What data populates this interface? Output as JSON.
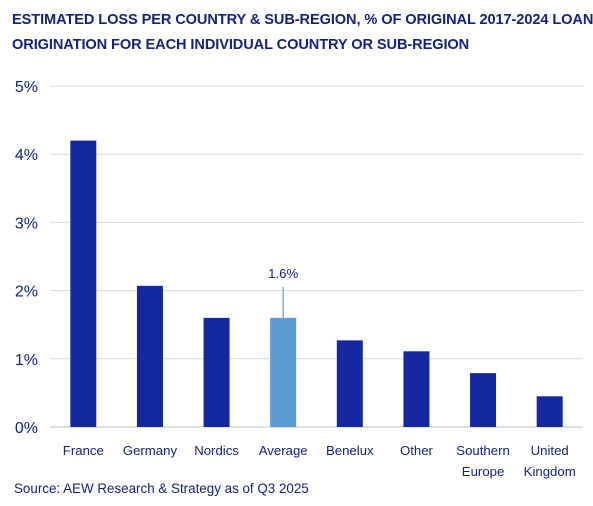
{
  "title_lines": [
    "ESTIMATED LOSS PER COUNTRY & SUB-REGION, % OF ORIGINAL 2017-2024 LOAN",
    "ORIGINATION FOR EACH INDIVIDUAL COUNTRY OR SUB-REGION"
  ],
  "source": "Source: AEW Research & Strategy as of Q3 2025",
  "colors": {
    "bar": "#1428a0",
    "highlight": "#5b9bd5",
    "text": "#14237a",
    "grid": "#d9d9d9"
  },
  "chart_data": {
    "type": "bar",
    "title": "ESTIMATED LOSS PER COUNTRY & SUB-REGION, % OF ORIGINAL 2017-2024 LOAN ORIGINATION FOR EACH INDIVIDUAL COUNTRY OR SUB-REGION",
    "categories": [
      [
        "France"
      ],
      [
        "Germany"
      ],
      [
        "Nordics"
      ],
      [
        "Average"
      ],
      [
        "Benelux"
      ],
      [
        "Other"
      ],
      [
        "Southern",
        "Europe"
      ],
      [
        "United",
        "Kingdom"
      ]
    ],
    "values": [
      4.2,
      2.07,
      1.6,
      1.6,
      1.27,
      1.11,
      0.79,
      0.45
    ],
    "highlight_index": 3,
    "ylim": [
      0,
      5
    ],
    "yticks": [
      0,
      1,
      2,
      3,
      4,
      5
    ],
    "ytick_labels": [
      "0%",
      "1%",
      "2%",
      "3%",
      "4%",
      "5%"
    ],
    "annotations": [
      {
        "category": "Average",
        "label": "1.6%"
      }
    ],
    "grid": true,
    "xlabel": "",
    "ylabel": ""
  }
}
